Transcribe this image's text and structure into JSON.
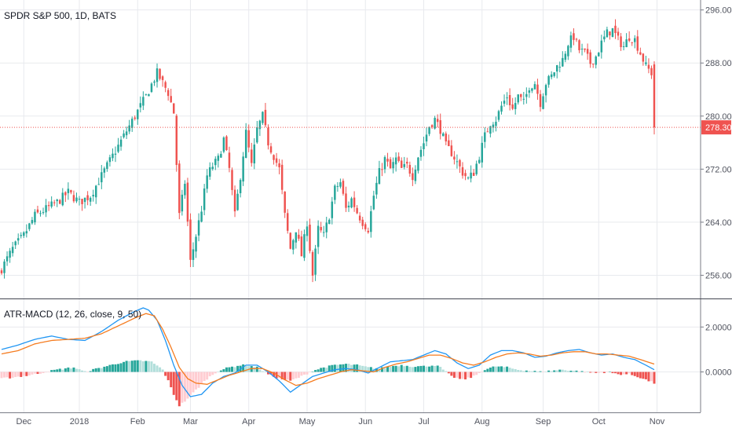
{
  "chart_data": [
    {
      "type": "candlestick",
      "title": "SPDR S&P 500, 1D, BATS",
      "y_ticks": [
        "296.00",
        "288.00",
        "280.00",
        "272.00",
        "264.00",
        "256.00"
      ],
      "y_tick_values": [
        296,
        288,
        280,
        272,
        264,
        256
      ],
      "ylim": [
        252.5,
        297.5
      ],
      "last_price": 278.3,
      "last_price_label": "278.30",
      "x_ticks": [
        "Dec",
        "2018",
        "Feb",
        "Mar",
        "Apr",
        "May",
        "Jun",
        "Jul",
        "Aug",
        "Sep",
        "Oct",
        "Nov"
      ],
      "keypoints": [
        [
          0,
          257
        ],
        [
          4,
          260
        ],
        [
          8,
          262
        ],
        [
          12,
          265
        ],
        [
          16,
          266
        ],
        [
          20,
          267
        ],
        [
          24,
          268.5
        ],
        [
          28,
          267
        ],
        [
          32,
          268
        ],
        [
          36,
          271
        ],
        [
          40,
          274
        ],
        [
          44,
          277
        ],
        [
          48,
          280
        ],
        [
          52,
          283
        ],
        [
          56,
          286.5
        ],
        [
          60,
          283.5
        ],
        [
          62,
          280.5
        ],
        [
          64,
          265
        ],
        [
          66,
          270
        ],
        [
          68,
          258
        ],
        [
          70,
          262
        ],
        [
          72,
          266
        ],
        [
          74,
          271
        ],
        [
          76,
          272.5
        ],
        [
          78,
          273.5
        ],
        [
          80,
          276.5
        ],
        [
          82,
          272
        ],
        [
          84,
          265
        ],
        [
          86,
          271
        ],
        [
          88,
          277.5
        ],
        [
          90,
          272.5
        ],
        [
          92,
          278
        ],
        [
          94,
          280
        ],
        [
          96,
          276
        ],
        [
          98,
          274
        ],
        [
          100,
          272
        ],
        [
          102,
          265
        ],
        [
          104,
          260
        ],
        [
          106,
          263
        ],
        [
          108,
          259
        ],
        [
          110,
          264
        ],
        [
          112,
          256
        ],
        [
          114,
          263
        ],
        [
          116,
          262
        ],
        [
          118,
          265
        ],
        [
          120,
          269
        ],
        [
          122,
          270
        ],
        [
          124,
          266
        ],
        [
          126,
          267.5
        ],
        [
          128,
          265.5
        ],
        [
          130,
          264
        ],
        [
          132,
          263
        ],
        [
          134,
          268
        ],
        [
          136,
          271.5
        ],
        [
          138,
          273.5
        ],
        [
          140,
          272
        ],
        [
          142,
          273.5
        ],
        [
          144,
          272
        ],
        [
          146,
          272.5
        ],
        [
          148,
          271
        ],
        [
          150,
          274
        ],
        [
          152,
          276
        ],
        [
          154,
          278.5
        ],
        [
          156,
          279.5
        ],
        [
          158,
          278
        ],
        [
          160,
          275.5
        ],
        [
          162,
          274.5
        ],
        [
          164,
          273
        ],
        [
          166,
          271.5
        ],
        [
          168,
          270.5
        ],
        [
          170,
          271.5
        ],
        [
          172,
          274
        ],
        [
          174,
          277
        ],
        [
          176,
          279
        ],
        [
          178,
          279.5
        ],
        [
          180,
          281.5
        ],
        [
          182,
          283
        ],
        [
          184,
          281
        ],
        [
          186,
          283
        ],
        [
          188,
          282
        ],
        [
          190,
          284.5
        ],
        [
          192,
          285
        ],
        [
          194,
          282
        ],
        [
          196,
          285
        ],
        [
          198,
          286
        ],
        [
          200,
          287.5
        ],
        [
          202,
          288.5
        ],
        [
          204,
          291
        ],
        [
          206,
          292
        ],
        [
          208,
          290
        ],
        [
          210,
          289.5
        ],
        [
          212,
          288
        ],
        [
          214,
          289
        ],
        [
          216,
          291
        ],
        [
          218,
          292.5
        ],
        [
          220,
          293
        ],
        [
          222,
          291.5
        ],
        [
          224,
          290.5
        ],
        [
          226,
          292
        ],
        [
          228,
          291.5
        ],
        [
          230,
          289.5
        ],
        [
          232,
          287.5
        ],
        [
          234,
          286.5
        ],
        [
          235,
          278.3
        ]
      ]
    },
    {
      "type": "line",
      "title": "ATR-MACD (12, 26, close, 9, 50)",
      "y_ticks": [
        "2.0000",
        "0.0000"
      ],
      "y_tick_values": [
        2,
        0
      ],
      "ylim": [
        -1.8,
        3.2
      ],
      "series": [
        {
          "color": "#2196f3",
          "keypoints": [
            [
              0,
              1.0
            ],
            [
              6,
              1.2
            ],
            [
              12,
              1.45
            ],
            [
              18,
              1.6
            ],
            [
              24,
              1.45
            ],
            [
              30,
              1.4
            ],
            [
              36,
              1.8
            ],
            [
              42,
              2.3
            ],
            [
              48,
              2.7
            ],
            [
              51,
              2.85
            ],
            [
              53,
              2.75
            ],
            [
              56,
              2.3
            ],
            [
              59,
              1.4
            ],
            [
              62,
              0.3
            ],
            [
              65,
              -0.6
            ],
            [
              68,
              -1.1
            ],
            [
              72,
              -1.0
            ],
            [
              76,
              -0.5
            ],
            [
              80,
              -0.2
            ],
            [
              84,
              -0.05
            ],
            [
              88,
              0.3
            ],
            [
              92,
              0.3
            ],
            [
              96,
              0.0
            ],
            [
              100,
              -0.4
            ],
            [
              104,
              -0.9
            ],
            [
              108,
              -0.55
            ],
            [
              112,
              -0.2
            ],
            [
              116,
              -0.05
            ],
            [
              120,
              0.1
            ],
            [
              124,
              0.15
            ],
            [
              128,
              0.1
            ],
            [
              132,
              -0.05
            ],
            [
              136,
              0.2
            ],
            [
              140,
              0.45
            ],
            [
              144,
              0.5
            ],
            [
              148,
              0.55
            ],
            [
              152,
              0.75
            ],
            [
              156,
              0.95
            ],
            [
              160,
              0.8
            ],
            [
              164,
              0.4
            ],
            [
              168,
              0.15
            ],
            [
              172,
              0.3
            ],
            [
              176,
              0.75
            ],
            [
              180,
              0.95
            ],
            [
              184,
              0.95
            ],
            [
              188,
              0.85
            ],
            [
              192,
              0.65
            ],
            [
              196,
              0.7
            ],
            [
              200,
              0.85
            ],
            [
              204,
              0.95
            ],
            [
              208,
              1.0
            ],
            [
              212,
              0.85
            ],
            [
              216,
              0.75
            ],
            [
              220,
              0.8
            ],
            [
              224,
              0.65
            ],
            [
              228,
              0.55
            ],
            [
              232,
              0.3
            ],
            [
              235,
              0.1
            ]
          ]
        },
        {
          "color": "#f57c20",
          "keypoints": [
            [
              0,
              0.8
            ],
            [
              6,
              0.95
            ],
            [
              12,
              1.25
            ],
            [
              18,
              1.4
            ],
            [
              24,
              1.45
            ],
            [
              30,
              1.5
            ],
            [
              36,
              1.7
            ],
            [
              42,
              2.05
            ],
            [
              48,
              2.4
            ],
            [
              52,
              2.6
            ],
            [
              55,
              2.5
            ],
            [
              58,
              1.9
            ],
            [
              61,
              1.1
            ],
            [
              64,
              0.2
            ],
            [
              67,
              -0.3
            ],
            [
              70,
              -0.5
            ],
            [
              74,
              -0.55
            ],
            [
              78,
              -0.35
            ],
            [
              82,
              -0.15
            ],
            [
              86,
              0.0
            ],
            [
              90,
              0.15
            ],
            [
              94,
              0.15
            ],
            [
              98,
              -0.05
            ],
            [
              102,
              -0.35
            ],
            [
              106,
              -0.6
            ],
            [
              110,
              -0.5
            ],
            [
              114,
              -0.3
            ],
            [
              118,
              -0.15
            ],
            [
              122,
              0.0
            ],
            [
              126,
              0.1
            ],
            [
              130,
              0.05
            ],
            [
              134,
              0.0
            ],
            [
              138,
              0.2
            ],
            [
              142,
              0.35
            ],
            [
              146,
              0.45
            ],
            [
              150,
              0.6
            ],
            [
              154,
              0.75
            ],
            [
              158,
              0.75
            ],
            [
              162,
              0.6
            ],
            [
              166,
              0.4
            ],
            [
              170,
              0.3
            ],
            [
              174,
              0.45
            ],
            [
              178,
              0.65
            ],
            [
              182,
              0.8
            ],
            [
              186,
              0.85
            ],
            [
              190,
              0.8
            ],
            [
              194,
              0.7
            ],
            [
              198,
              0.75
            ],
            [
              202,
              0.85
            ],
            [
              206,
              0.9
            ],
            [
              210,
              0.9
            ],
            [
              214,
              0.8
            ],
            [
              218,
              0.8
            ],
            [
              222,
              0.75
            ],
            [
              226,
              0.7
            ],
            [
              230,
              0.55
            ],
            [
              235,
              0.35
            ]
          ]
        }
      ],
      "histogram_keypoints": [
        [
          0,
          -0.3
        ],
        [
          10,
          -0.15
        ],
        [
          20,
          0.1
        ],
        [
          26,
          0.2
        ],
        [
          30,
          0.0
        ],
        [
          36,
          0.2
        ],
        [
          44,
          0.45
        ],
        [
          50,
          0.5
        ],
        [
          54,
          0.45
        ],
        [
          58,
          0.1
        ],
        [
          60,
          -0.4
        ],
        [
          62,
          -1.0
        ],
        [
          64,
          -1.5
        ],
        [
          66,
          -1.3
        ],
        [
          70,
          -0.8
        ],
        [
          74,
          -0.3
        ],
        [
          78,
          0.05
        ],
        [
          82,
          0.2
        ],
        [
          86,
          0.3
        ],
        [
          88,
          0.3
        ],
        [
          92,
          0.2
        ],
        [
          96,
          -0.1
        ],
        [
          100,
          -0.3
        ],
        [
          104,
          -0.4
        ],
        [
          108,
          -0.2
        ],
        [
          112,
          0.05
        ],
        [
          116,
          0.2
        ],
        [
          120,
          0.3
        ],
        [
          124,
          0.35
        ],
        [
          128,
          0.3
        ],
        [
          132,
          0.2
        ],
        [
          136,
          0.15
        ],
        [
          140,
          0.25
        ],
        [
          144,
          0.3
        ],
        [
          148,
          0.25
        ],
        [
          152,
          0.25
        ],
        [
          156,
          0.3
        ],
        [
          158,
          0.2
        ],
        [
          162,
          -0.2
        ],
        [
          166,
          -0.35
        ],
        [
          170,
          -0.2
        ],
        [
          174,
          0.1
        ],
        [
          178,
          0.25
        ],
        [
          182,
          0.2
        ],
        [
          186,
          0.1
        ],
        [
          190,
          0.05
        ],
        [
          194,
          0.0
        ],
        [
          198,
          0.05
        ],
        [
          202,
          0.1
        ],
        [
          206,
          0.05
        ],
        [
          210,
          0.0
        ],
        [
          214,
          -0.05
        ],
        [
          218,
          0.0
        ],
        [
          222,
          -0.1
        ],
        [
          226,
          -0.1
        ],
        [
          230,
          -0.25
        ],
        [
          234,
          -0.45
        ],
        [
          235,
          -0.5
        ]
      ]
    }
  ],
  "colors": {
    "up": "#26a69a",
    "down": "#ef5350",
    "up_light": "#b2dfdb",
    "down_light": "#ffcdd2",
    "grid": "#e8eaee",
    "axis": "#787b86",
    "price_line": "#ef5350",
    "price_tag": "#ef5350"
  }
}
